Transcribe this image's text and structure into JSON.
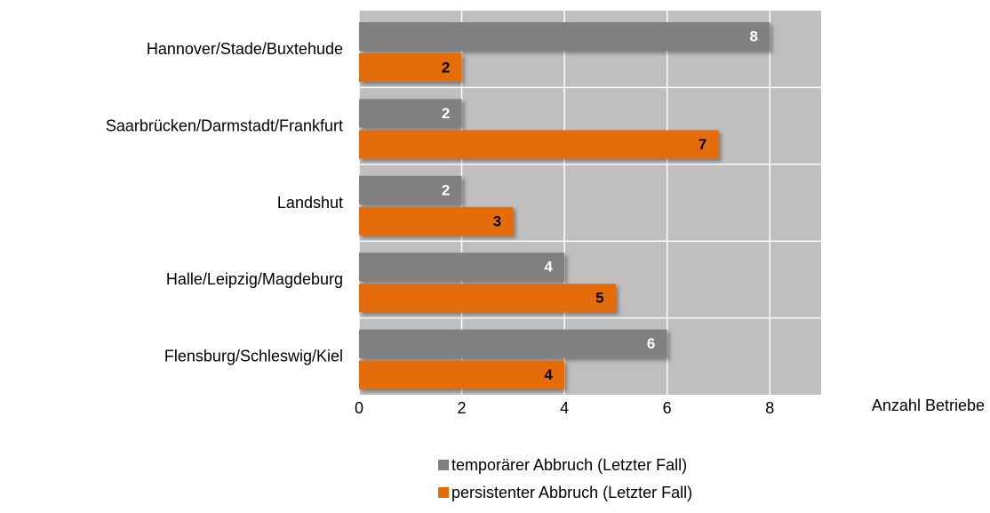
{
  "chart_data": {
    "type": "barh",
    "categories": [
      "Hannover/Stade/Buxtehude",
      "Saarbrücken/Darmstadt/Frankfurt",
      "Landshut",
      "Halle/Leipzig/Magdeburg",
      "Flensburg/Schleswig/Kiel"
    ],
    "series": [
      {
        "name": "temporärer Abbruch (Letzter Fall)",
        "color": "#808080",
        "values": [
          8,
          2,
          2,
          4,
          6
        ]
      },
      {
        "name": "persistenter Abbruch (Letzter Fall)",
        "color": "#e46c0a",
        "values": [
          2,
          7,
          3,
          5,
          4
        ]
      }
    ],
    "xlabel": "Anzahl Betriebe",
    "xlim": [
      0,
      9
    ],
    "xticks": [
      0,
      2,
      4,
      6,
      8
    ],
    "grid": true
  }
}
